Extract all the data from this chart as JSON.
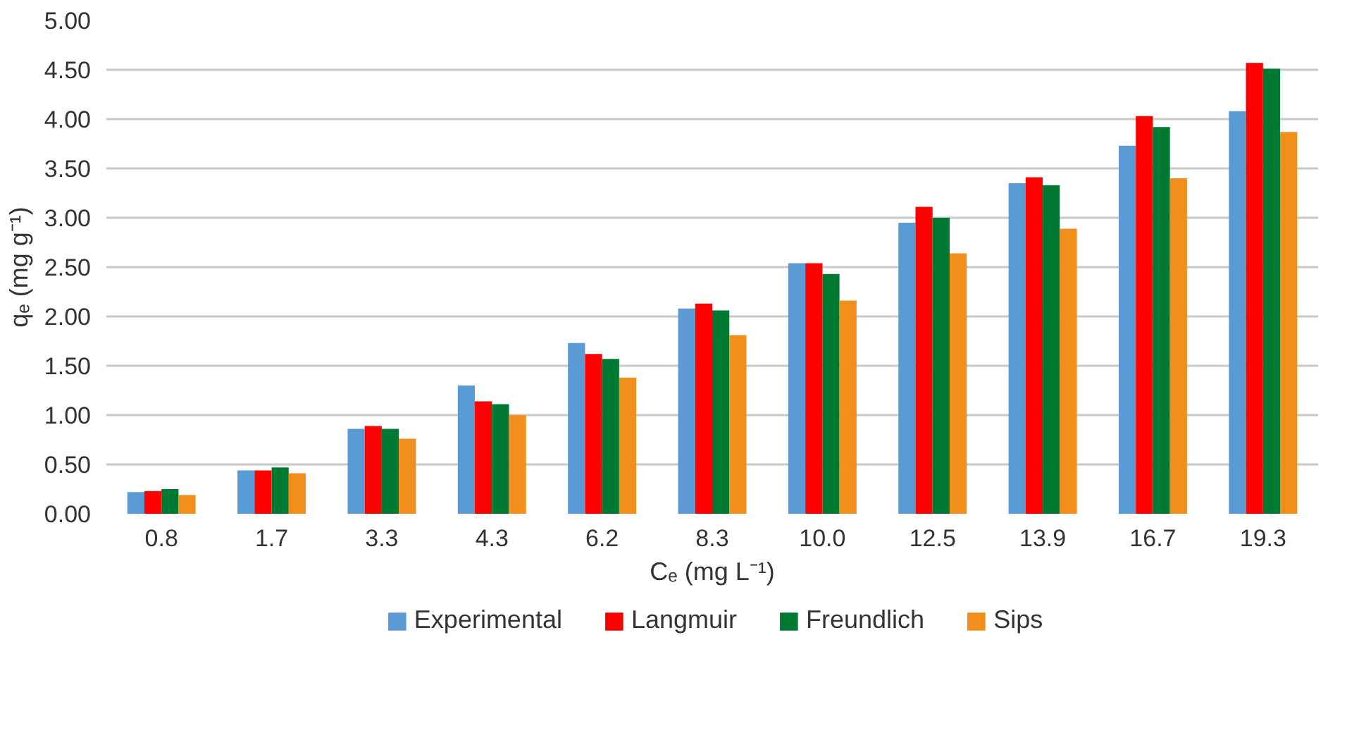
{
  "chart_data": {
    "type": "bar",
    "xlabel": "Cₑ (mg L⁻¹)",
    "ylabel": "qₑ (mg g⁻¹)",
    "categories": [
      "0.8",
      "1.7",
      "3.3",
      "4.3",
      "6.2",
      "8.3",
      "10.0",
      "12.5",
      "13.9",
      "16.7",
      "19.3"
    ],
    "series": [
      {
        "name": "Experimental",
        "color": "#5b9bd5",
        "values": [
          0.22,
          0.44,
          0.86,
          1.3,
          1.73,
          2.08,
          2.54,
          2.95,
          3.35,
          3.73,
          4.08
        ]
      },
      {
        "name": "Langmuir",
        "color": "#ff0000",
        "values": [
          0.23,
          0.44,
          0.89,
          1.14,
          1.62,
          2.13,
          2.54,
          3.11,
          3.41,
          4.03,
          4.57
        ]
      },
      {
        "name": "Freundlich",
        "color": "#007a33",
        "values": [
          0.25,
          0.47,
          0.86,
          1.11,
          1.57,
          2.06,
          2.43,
          3.0,
          3.33,
          3.92,
          4.51
        ]
      },
      {
        "name": "Sips",
        "color": "#f28e1c",
        "values": [
          0.19,
          0.41,
          0.76,
          1.0,
          1.38,
          1.81,
          2.16,
          2.64,
          2.89,
          3.4,
          3.87
        ]
      }
    ],
    "ylim": [
      0,
      5
    ],
    "yticks": [
      {
        "value": 0,
        "label": "0.00"
      },
      {
        "value": 0.5,
        "label": "0.50"
      },
      {
        "value": 1,
        "label": "1.00"
      },
      {
        "value": 1.5,
        "label": "1.50"
      },
      {
        "value": 2,
        "label": "2.00"
      },
      {
        "value": 2.5,
        "label": "2.50"
      },
      {
        "value": 3,
        "label": "3.00"
      },
      {
        "value": 3.5,
        "label": "3.50"
      },
      {
        "value": 4,
        "label": "4.00"
      },
      {
        "value": 4.5,
        "label": "4.50"
      },
      {
        "value": 5,
        "label": "5.00"
      }
    ],
    "grid": "y",
    "legend": "bottom"
  }
}
